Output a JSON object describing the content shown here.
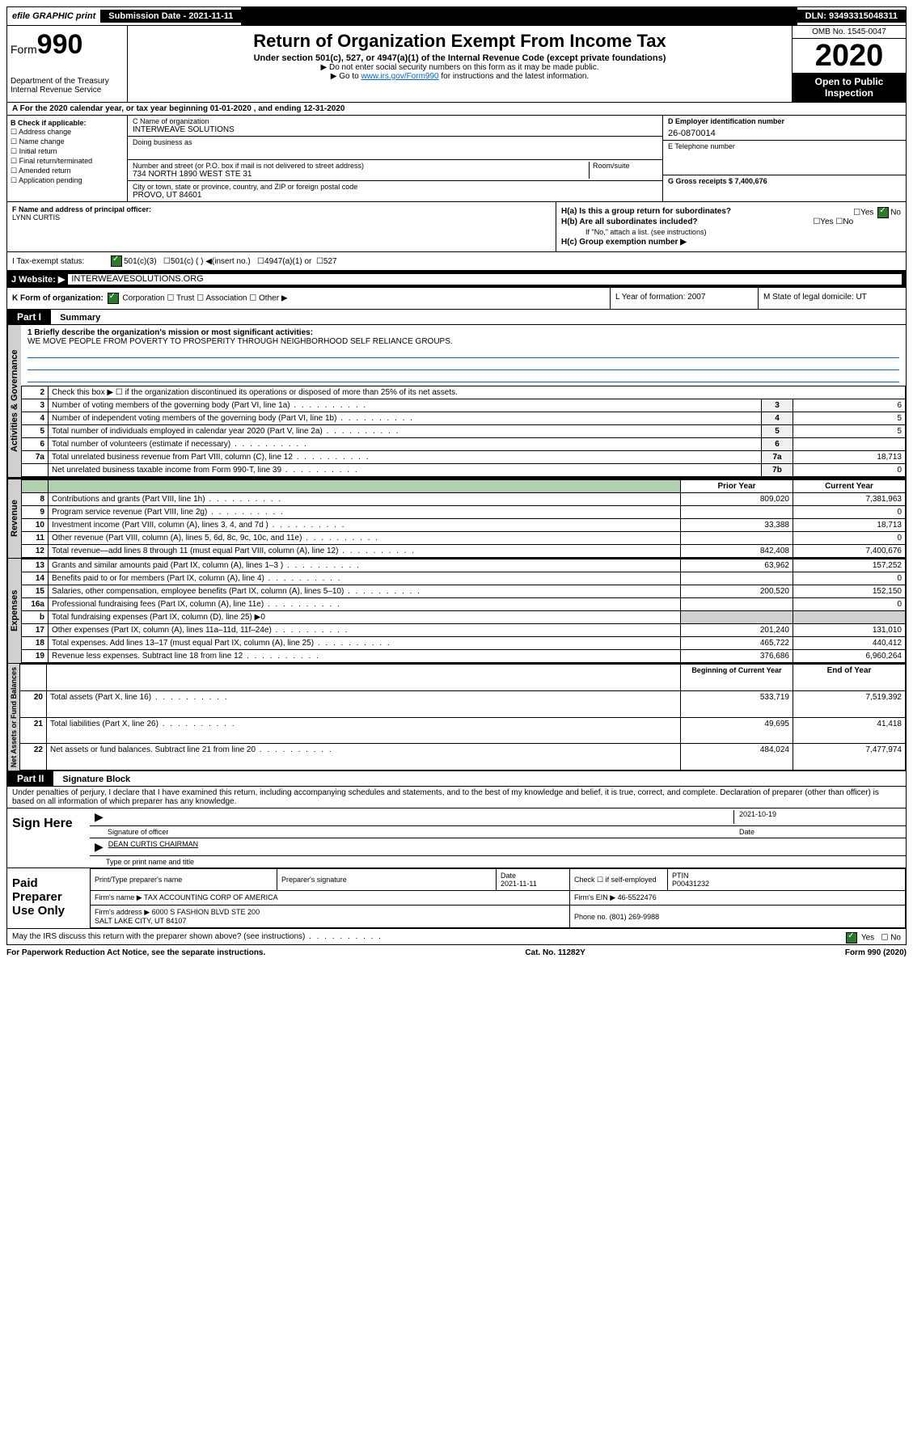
{
  "topbar": {
    "efile": "efile GRAPHIC print",
    "submission": "Submission Date - 2021-11-11",
    "dln": "DLN: 93493315048311"
  },
  "header": {
    "form_label": "Form",
    "form_num": "990",
    "dept": "Department of the Treasury\nInternal Revenue Service",
    "title": "Return of Organization Exempt From Income Tax",
    "subtitle": "Under section 501(c), 527, or 4947(a)(1) of the Internal Revenue Code (except private foundations)",
    "note1": "▶ Do not enter social security numbers on this form as it may be made public.",
    "note2_pre": "▶ Go to ",
    "note2_link": "www.irs.gov/Form990",
    "note2_post": " for instructions and the latest information.",
    "omb": "OMB No. 1545-0047",
    "year": "2020",
    "open": "Open to Public Inspection"
  },
  "section_a": "A For the 2020 calendar year, or tax year beginning 01-01-2020    , and ending 12-31-2020",
  "box_b": {
    "header": "B Check if applicable:",
    "items": [
      "Address change",
      "Name change",
      "Initial return",
      "Final return/terminated",
      "Amended return",
      "Application pending"
    ]
  },
  "box_c": {
    "c_label": "C Name of organization",
    "c_val": "INTERWEAVE SOLUTIONS",
    "dba_label": "Doing business as",
    "addr_label": "Number and street (or P.O. box if mail is not delivered to street address)",
    "room_label": "Room/suite",
    "addr_val": "734 NORTH 1890 WEST STE 31",
    "city_label": "City or town, state or province, country, and ZIP or foreign postal code",
    "city_val": "PROVO, UT  84601"
  },
  "box_de": {
    "d_label": "D Employer identification number",
    "d_val": "26-0870014",
    "e_label": "E Telephone number",
    "g_label": "G Gross receipts $ 7,400,676"
  },
  "box_f": {
    "label": "F  Name and address of principal officer:",
    "val": "LYNN CURTIS"
  },
  "box_h": {
    "ha": "H(a)  Is this a group return for subordinates?",
    "hb": "H(b)  Are all subordinates included?",
    "hb_note": "If \"No,\" attach a list. (see instructions)",
    "hc": "H(c)  Group exemption number ▶"
  },
  "box_i": {
    "label": "I    Tax-exempt status:",
    "opts": [
      "501(c)(3)",
      "501(c) (  ) ◀(insert no.)",
      "4947(a)(1) or",
      "527"
    ]
  },
  "box_j": {
    "label": "J   Website: ▶",
    "val": "  INTERWEAVESOLUTIONS.ORG"
  },
  "box_klm": {
    "k": "K Form of organization:",
    "k_opts": [
      "Corporation",
      "Trust",
      "Association",
      "Other ▶"
    ],
    "l": "L Year of formation: 2007",
    "m": "M State of legal domicile: UT"
  },
  "part1": {
    "header": "Part I",
    "title": "Summary",
    "line1_label": "1  Briefly describe the organization's mission or most significant activities:",
    "line1_val": "WE MOVE PEOPLE FROM POVERTY TO PROSPERITY THROUGH NEIGHBORHOOD SELF RELIANCE GROUPS.",
    "gov_label": "Activities & Governance",
    "rev_label": "Revenue",
    "exp_label": "Expenses",
    "net_label": "Net Assets or Fund Balances",
    "lines_gov": [
      {
        "n": "2",
        "t": "Check this box ▶ ☐  if the organization discontinued its operations or disposed of more than 25% of its net assets."
      },
      {
        "n": "3",
        "t": "Number of voting members of the governing body (Part VI, line 1a)",
        "box": "3",
        "v": "6"
      },
      {
        "n": "4",
        "t": "Number of independent voting members of the governing body (Part VI, line 1b)",
        "box": "4",
        "v": "5"
      },
      {
        "n": "5",
        "t": "Total number of individuals employed in calendar year 2020 (Part V, line 2a)",
        "box": "5",
        "v": "5"
      },
      {
        "n": "6",
        "t": "Total number of volunteers (estimate if necessary)",
        "box": "6",
        "v": ""
      },
      {
        "n": "7a",
        "t": "Total unrelated business revenue from Part VIII, column (C), line 12",
        "box": "7a",
        "v": "18,713"
      },
      {
        "n": "",
        "t": "Net unrelated business taxable income from Form 990-T, line 39",
        "box": "7b",
        "v": "0"
      }
    ],
    "col_headers": {
      "prior": "Prior Year",
      "current": "Current Year"
    },
    "lines_rev": [
      {
        "n": "8",
        "t": "Contributions and grants (Part VIII, line 1h)",
        "p": "809,020",
        "c": "7,381,963"
      },
      {
        "n": "9",
        "t": "Program service revenue (Part VIII, line 2g)",
        "p": "",
        "c": "0"
      },
      {
        "n": "10",
        "t": "Investment income (Part VIII, column (A), lines 3, 4, and 7d )",
        "p": "33,388",
        "c": "18,713"
      },
      {
        "n": "11",
        "t": "Other revenue (Part VIII, column (A), lines 5, 6d, 8c, 9c, 10c, and 11e)",
        "p": "",
        "c": "0"
      },
      {
        "n": "12",
        "t": "Total revenue—add lines 8 through 11 (must equal Part VIII, column (A), line 12)",
        "p": "842,408",
        "c": "7,400,676"
      }
    ],
    "lines_exp": [
      {
        "n": "13",
        "t": "Grants and similar amounts paid (Part IX, column (A), lines 1–3 )",
        "p": "63,962",
        "c": "157,252"
      },
      {
        "n": "14",
        "t": "Benefits paid to or for members (Part IX, column (A), line 4)",
        "p": "",
        "c": "0"
      },
      {
        "n": "15",
        "t": "Salaries, other compensation, employee benefits (Part IX, column (A), lines 5–10)",
        "p": "200,520",
        "c": "152,150"
      },
      {
        "n": "16a",
        "t": "Professional fundraising fees (Part IX, column (A), line 11e)",
        "p": "",
        "c": "0"
      },
      {
        "n": "b",
        "t": "Total fundraising expenses (Part IX, column (D), line 25) ▶0",
        "p": null,
        "c": null
      },
      {
        "n": "17",
        "t": "Other expenses (Part IX, column (A), lines 11a–11d, 11f–24e)",
        "p": "201,240",
        "c": "131,010"
      },
      {
        "n": "18",
        "t": "Total expenses. Add lines 13–17 (must equal Part IX, column (A), line 25)",
        "p": "465,722",
        "c": "440,412"
      },
      {
        "n": "19",
        "t": "Revenue less expenses. Subtract line 18 from line 12",
        "p": "376,686",
        "c": "6,960,264"
      }
    ],
    "net_headers": {
      "begin": "Beginning of Current Year",
      "end": "End of Year"
    },
    "lines_net": [
      {
        "n": "20",
        "t": "Total assets (Part X, line 16)",
        "p": "533,719",
        "c": "7,519,392"
      },
      {
        "n": "21",
        "t": "Total liabilities (Part X, line 26)",
        "p": "49,695",
        "c": "41,418"
      },
      {
        "n": "22",
        "t": "Net assets or fund balances. Subtract line 21 from line 20",
        "p": "484,024",
        "c": "7,477,974"
      }
    ]
  },
  "part2": {
    "header": "Part II",
    "title": "Signature Block",
    "declaration": "Under penalties of perjury, I declare that I have examined this return, including accompanying schedules and statements, and to the best of my knowledge and belief, it is true, correct, and complete. Declaration of preparer (other than officer) is based on all information of which preparer has any knowledge.",
    "sign_here": "Sign Here",
    "sig_date": "2021-10-19",
    "sig_officer": "Signature of officer",
    "sig_date_label": "Date",
    "officer_name": "DEAN CURTIS CHAIRMAN",
    "officer_label": "Type or print name and title",
    "paid": "Paid Preparer Use Only",
    "prep_name_label": "Print/Type preparer's name",
    "prep_sig_label": "Preparer's signature",
    "date_label": "Date",
    "date_val": "2021-11-11",
    "check_label": "Check ☐ if self-employed",
    "ptin_label": "PTIN",
    "ptin_val": "P00431232",
    "firm_name_label": "Firm's name    ▶",
    "firm_name": "TAX ACCOUNTING CORP OF AMERICA",
    "firm_ein_label": "Firm's EIN ▶",
    "firm_ein": "46-5522476",
    "firm_addr_label": "Firm's address ▶",
    "firm_addr": "6000 S FASHION BLVD STE 200\nSALT LAKE CITY, UT  84107",
    "phone_label": "Phone no.",
    "phone": "(801) 269-9988",
    "discuss": "May the IRS discuss this return with the preparer shown above? (see instructions)"
  },
  "footer": {
    "left": "For Paperwork Reduction Act Notice, see the separate instructions.",
    "mid": "Cat. No. 11282Y",
    "right": "Form 990 (2020)"
  }
}
